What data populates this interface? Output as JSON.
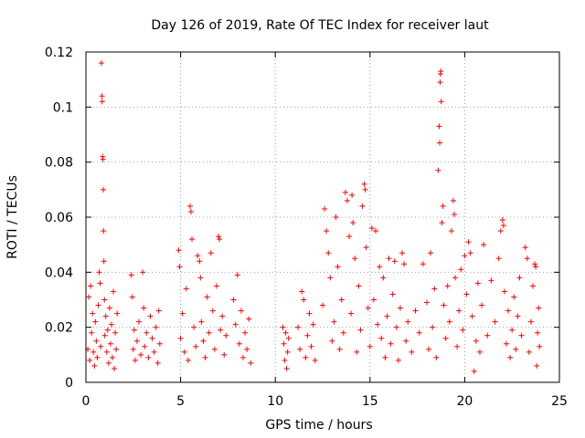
{
  "chart_data": {
    "type": "scatter",
    "title": "Day 126 of 2019, Rate Of TEC Index for receiver laut",
    "xlabel": "GPS time / hours",
    "ylabel": "ROTI / TECUs",
    "xlim": [
      0,
      25
    ],
    "ylim": [
      0,
      0.12
    ],
    "grid": true,
    "marker": "plus",
    "color": "#ff0000",
    "x_ticks": [
      {
        "value": 0,
        "label": "0"
      },
      {
        "value": 5,
        "label": "5"
      },
      {
        "value": 10,
        "label": "10"
      },
      {
        "value": 15,
        "label": "15"
      },
      {
        "value": 20,
        "label": "20"
      },
      {
        "value": 25,
        "label": "25"
      }
    ],
    "y_ticks": [
      {
        "value": 0,
        "label": "0"
      },
      {
        "value": 0.02,
        "label": "0.02"
      },
      {
        "value": 0.04,
        "label": "0.04"
      },
      {
        "value": 0.06,
        "label": "0.06"
      },
      {
        "value": 0.08,
        "label": "0.08"
      },
      {
        "value": 0.1,
        "label": "0.1"
      },
      {
        "value": 0.12,
        "label": "0.12"
      }
    ],
    "series": [
      {
        "name": "ROTI",
        "points": [
          [
            0.1,
            0.012
          ],
          [
            0.15,
            0.031
          ],
          [
            0.2,
            0.008
          ],
          [
            0.25,
            0.035
          ],
          [
            0.3,
            0.018
          ],
          [
            0.35,
            0.025
          ],
          [
            0.4,
            0.011
          ],
          [
            0.45,
            0.006
          ],
          [
            0.5,
            0.022
          ],
          [
            0.55,
            0.015
          ],
          [
            0.6,
            0.009
          ],
          [
            0.65,
            0.028
          ],
          [
            0.7,
            0.04
          ],
          [
            0.75,
            0.036
          ],
          [
            0.78,
            0.013
          ],
          [
            0.82,
            0.116
          ],
          [
            0.85,
            0.104
          ],
          [
            0.86,
            0.102
          ],
          [
            0.88,
            0.082
          ],
          [
            0.9,
            0.081
          ],
          [
            0.92,
            0.07
          ],
          [
            0.93,
            0.055
          ],
          [
            0.95,
            0.044
          ],
          [
            0.98,
            0.03
          ],
          [
            1.0,
            0.017
          ],
          [
            1.05,
            0.024
          ],
          [
            1.1,
            0.011
          ],
          [
            1.15,
            0.019
          ],
          [
            1.2,
            0.007
          ],
          [
            1.25,
            0.027
          ],
          [
            1.3,
            0.014
          ],
          [
            1.35,
            0.021
          ],
          [
            1.4,
            0.009
          ],
          [
            1.45,
            0.033
          ],
          [
            1.5,
            0.005
          ],
          [
            1.55,
            0.018
          ],
          [
            1.6,
            0.012
          ],
          [
            1.65,
            0.025
          ],
          [
            2.4,
            0.039
          ],
          [
            2.45,
            0.031
          ],
          [
            2.5,
            0.012
          ],
          [
            2.55,
            0.019
          ],
          [
            2.6,
            0.008
          ],
          [
            2.7,
            0.015
          ],
          [
            2.8,
            0.022
          ],
          [
            2.9,
            0.01
          ],
          [
            3.0,
            0.04
          ],
          [
            3.05,
            0.027
          ],
          [
            3.1,
            0.013
          ],
          [
            3.2,
            0.018
          ],
          [
            3.3,
            0.009
          ],
          [
            3.4,
            0.024
          ],
          [
            3.5,
            0.016
          ],
          [
            3.6,
            0.011
          ],
          [
            3.7,
            0.02
          ],
          [
            3.8,
            0.007
          ],
          [
            3.85,
            0.026
          ],
          [
            3.9,
            0.014
          ],
          [
            4.9,
            0.048
          ],
          [
            4.95,
            0.042
          ],
          [
            5.0,
            0.016
          ],
          [
            5.1,
            0.025
          ],
          [
            5.2,
            0.011
          ],
          [
            5.3,
            0.034
          ],
          [
            5.4,
            0.008
          ],
          [
            5.5,
            0.064
          ],
          [
            5.55,
            0.062
          ],
          [
            5.6,
            0.052
          ],
          [
            5.7,
            0.02
          ],
          [
            5.8,
            0.013
          ],
          [
            5.9,
            0.046
          ],
          [
            6.0,
            0.044
          ],
          [
            6.05,
            0.038
          ],
          [
            6.1,
            0.022
          ],
          [
            6.2,
            0.015
          ],
          [
            6.3,
            0.009
          ],
          [
            6.4,
            0.031
          ],
          [
            6.5,
            0.018
          ],
          [
            6.6,
            0.047
          ],
          [
            6.7,
            0.026
          ],
          [
            6.8,
            0.012
          ],
          [
            6.9,
            0.035
          ],
          [
            7.0,
            0.053
          ],
          [
            7.05,
            0.052
          ],
          [
            7.1,
            0.019
          ],
          [
            7.2,
            0.024
          ],
          [
            7.3,
            0.01
          ],
          [
            7.4,
            0.017
          ],
          [
            7.8,
            0.03
          ],
          [
            7.9,
            0.021
          ],
          [
            8.0,
            0.039
          ],
          [
            8.1,
            0.014
          ],
          [
            8.2,
            0.026
          ],
          [
            8.3,
            0.009
          ],
          [
            8.4,
            0.018
          ],
          [
            8.5,
            0.012
          ],
          [
            8.6,
            0.023
          ],
          [
            8.7,
            0.007
          ],
          [
            10.4,
            0.02
          ],
          [
            10.45,
            0.014
          ],
          [
            10.5,
            0.008
          ],
          [
            10.55,
            0.018
          ],
          [
            10.6,
            0.005
          ],
          [
            10.65,
            0.011
          ],
          [
            10.7,
            0.016
          ],
          [
            11.2,
            0.02
          ],
          [
            11.3,
            0.012
          ],
          [
            11.4,
            0.033
          ],
          [
            11.5,
            0.03
          ],
          [
            11.6,
            0.009
          ],
          [
            11.7,
            0.017
          ],
          [
            11.8,
            0.025
          ],
          [
            11.9,
            0.013
          ],
          [
            12.0,
            0.021
          ],
          [
            12.1,
            0.008
          ],
          [
            12.5,
            0.028
          ],
          [
            12.6,
            0.063
          ],
          [
            12.7,
            0.055
          ],
          [
            12.8,
            0.047
          ],
          [
            12.9,
            0.038
          ],
          [
            13.0,
            0.015
          ],
          [
            13.1,
            0.022
          ],
          [
            13.2,
            0.06
          ],
          [
            13.3,
            0.042
          ],
          [
            13.4,
            0.012
          ],
          [
            13.5,
            0.03
          ],
          [
            13.6,
            0.018
          ],
          [
            13.7,
            0.069
          ],
          [
            13.8,
            0.066
          ],
          [
            13.9,
            0.053
          ],
          [
            14.0,
            0.025
          ],
          [
            14.05,
            0.068
          ],
          [
            14.1,
            0.058
          ],
          [
            14.2,
            0.045
          ],
          [
            14.3,
            0.011
          ],
          [
            14.4,
            0.035
          ],
          [
            14.5,
            0.019
          ],
          [
            14.6,
            0.064
          ],
          [
            14.7,
            0.072
          ],
          [
            14.75,
            0.07
          ],
          [
            14.8,
            0.049
          ],
          [
            14.9,
            0.027
          ],
          [
            15.0,
            0.013
          ],
          [
            15.1,
            0.056
          ],
          [
            15.2,
            0.03
          ],
          [
            15.3,
            0.055
          ],
          [
            15.4,
            0.021
          ],
          [
            15.5,
            0.042
          ],
          [
            15.6,
            0.016
          ],
          [
            15.7,
            0.038
          ],
          [
            15.8,
            0.009
          ],
          [
            15.9,
            0.024
          ],
          [
            16.0,
            0.045
          ],
          [
            16.1,
            0.014
          ],
          [
            16.2,
            0.032
          ],
          [
            16.3,
            0.044
          ],
          [
            16.4,
            0.02
          ],
          [
            16.5,
            0.008
          ],
          [
            16.6,
            0.027
          ],
          [
            16.7,
            0.047
          ],
          [
            16.8,
            0.043
          ],
          [
            16.9,
            0.015
          ],
          [
            17.0,
            0.022
          ],
          [
            17.2,
            0.011
          ],
          [
            17.4,
            0.026
          ],
          [
            17.6,
            0.018
          ],
          [
            17.8,
            0.043
          ],
          [
            18.0,
            0.029
          ],
          [
            18.1,
            0.012
          ],
          [
            18.2,
            0.047
          ],
          [
            18.3,
            0.02
          ],
          [
            18.4,
            0.034
          ],
          [
            18.5,
            0.009
          ],
          [
            18.6,
            0.077
          ],
          [
            18.65,
            0.093
          ],
          [
            18.68,
            0.087
          ],
          [
            18.7,
            0.109
          ],
          [
            18.72,
            0.112
          ],
          [
            18.74,
            0.113
          ],
          [
            18.76,
            0.102
          ],
          [
            18.8,
            0.058
          ],
          [
            18.85,
            0.064
          ],
          [
            18.9,
            0.028
          ],
          [
            19.0,
            0.016
          ],
          [
            19.1,
            0.035
          ],
          [
            19.2,
            0.022
          ],
          [
            19.3,
            0.055
          ],
          [
            19.4,
            0.066
          ],
          [
            19.45,
            0.061
          ],
          [
            19.5,
            0.038
          ],
          [
            19.6,
            0.013
          ],
          [
            19.7,
            0.026
          ],
          [
            19.8,
            0.041
          ],
          [
            19.9,
            0.019
          ],
          [
            20.0,
            0.046
          ],
          [
            20.1,
            0.032
          ],
          [
            20.2,
            0.051
          ],
          [
            20.3,
            0.047
          ],
          [
            20.4,
            0.024
          ],
          [
            20.5,
            0.004
          ],
          [
            20.6,
            0.015
          ],
          [
            20.7,
            0.036
          ],
          [
            20.8,
            0.011
          ],
          [
            20.9,
            0.028
          ],
          [
            21.0,
            0.05
          ],
          [
            21.2,
            0.017
          ],
          [
            21.4,
            0.037
          ],
          [
            21.6,
            0.022
          ],
          [
            21.8,
            0.045
          ],
          [
            21.9,
            0.055
          ],
          [
            22.0,
            0.059
          ],
          [
            22.05,
            0.057
          ],
          [
            22.1,
            0.033
          ],
          [
            22.2,
            0.014
          ],
          [
            22.3,
            0.026
          ],
          [
            22.4,
            0.009
          ],
          [
            22.5,
            0.019
          ],
          [
            22.6,
            0.031
          ],
          [
            22.7,
            0.012
          ],
          [
            22.8,
            0.024
          ],
          [
            22.9,
            0.038
          ],
          [
            23.0,
            0.017
          ],
          [
            23.2,
            0.049
          ],
          [
            23.3,
            0.045
          ],
          [
            23.4,
            0.011
          ],
          [
            23.5,
            0.022
          ],
          [
            23.6,
            0.035
          ],
          [
            23.7,
            0.043
          ],
          [
            23.75,
            0.042
          ],
          [
            23.8,
            0.006
          ],
          [
            23.85,
            0.018
          ],
          [
            23.9,
            0.027
          ],
          [
            23.95,
            0.013
          ]
        ]
      }
    ]
  }
}
